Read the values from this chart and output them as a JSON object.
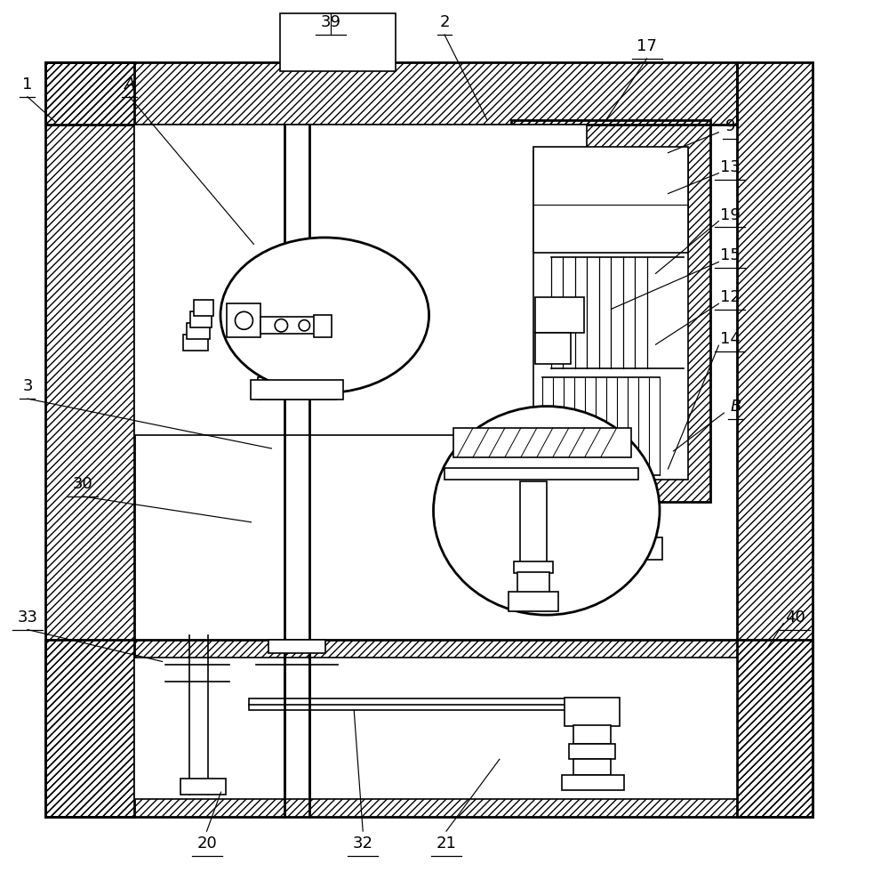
{
  "bg": "#ffffff",
  "lc": "#000000",
  "lw": 1.2,
  "lw2": 2.0,
  "lw3": 0.8,
  "fs": 13,
  "fig_w": 10.0,
  "fig_h": 9.98,
  "dpi": 100
}
